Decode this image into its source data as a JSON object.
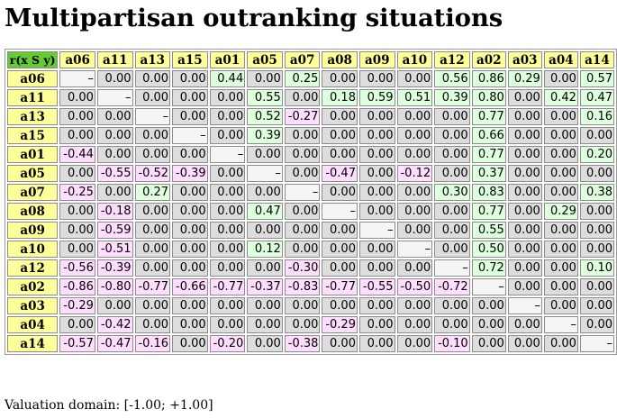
{
  "page": {
    "title": "Multipartisan outranking situations",
    "caption": "Valuation domain: [-1.00; +1.00]"
  },
  "matrix": {
    "corner_label": "r(x S y)",
    "column_labels": [
      "a06",
      "a11",
      "a13",
      "a15",
      "a01",
      "a05",
      "a07",
      "a08",
      "a09",
      "a10",
      "a12",
      "a02",
      "a03",
      "a04",
      "a14"
    ],
    "rows": [
      {
        "label": "a06",
        "cells": [
          "–",
          "0.00",
          "0.00",
          "0.00",
          "0.44",
          "0.00",
          "0.25",
          "0.00",
          "0.00",
          "0.00",
          "0.56",
          "0.86",
          "0.29",
          "0.00",
          "0.57"
        ]
      },
      {
        "label": "a11",
        "cells": [
          "0.00",
          "–",
          "0.00",
          "0.00",
          "0.00",
          "0.55",
          "0.00",
          "0.18",
          "0.59",
          "0.51",
          "0.39",
          "0.80",
          "0.00",
          "0.42",
          "0.47"
        ]
      },
      {
        "label": "a13",
        "cells": [
          "0.00",
          "0.00",
          "–",
          "0.00",
          "0.00",
          "0.52",
          "-0.27",
          "0.00",
          "0.00",
          "0.00",
          "0.00",
          "0.77",
          "0.00",
          "0.00",
          "0.16"
        ]
      },
      {
        "label": "a15",
        "cells": [
          "0.00",
          "0.00",
          "0.00",
          "–",
          "0.00",
          "0.39",
          "0.00",
          "0.00",
          "0.00",
          "0.00",
          "0.00",
          "0.66",
          "0.00",
          "0.00",
          "0.00"
        ]
      },
      {
        "label": "a01",
        "cells": [
          "-0.44",
          "0.00",
          "0.00",
          "0.00",
          "–",
          "0.00",
          "0.00",
          "0.00",
          "0.00",
          "0.00",
          "0.00",
          "0.77",
          "0.00",
          "0.00",
          "0.20"
        ]
      },
      {
        "label": "a05",
        "cells": [
          "0.00",
          "-0.55",
          "-0.52",
          "-0.39",
          "0.00",
          "–",
          "0.00",
          "-0.47",
          "0.00",
          "-0.12",
          "0.00",
          "0.37",
          "0.00",
          "0.00",
          "0.00"
        ]
      },
      {
        "label": "a07",
        "cells": [
          "-0.25",
          "0.00",
          "0.27",
          "0.00",
          "0.00",
          "0.00",
          "–",
          "0.00",
          "0.00",
          "0.00",
          "0.30",
          "0.83",
          "0.00",
          "0.00",
          "0.38"
        ]
      },
      {
        "label": "a08",
        "cells": [
          "0.00",
          "-0.18",
          "0.00",
          "0.00",
          "0.00",
          "0.47",
          "0.00",
          "–",
          "0.00",
          "0.00",
          "0.00",
          "0.77",
          "0.00",
          "0.29",
          "0.00"
        ]
      },
      {
        "label": "a09",
        "cells": [
          "0.00",
          "-0.59",
          "0.00",
          "0.00",
          "0.00",
          "0.00",
          "0.00",
          "0.00",
          "–",
          "0.00",
          "0.00",
          "0.55",
          "0.00",
          "0.00",
          "0.00"
        ]
      },
      {
        "label": "a10",
        "cells": [
          "0.00",
          "-0.51",
          "0.00",
          "0.00",
          "0.00",
          "0.12",
          "0.00",
          "0.00",
          "0.00",
          "–",
          "0.00",
          "0.50",
          "0.00",
          "0.00",
          "0.00"
        ]
      },
      {
        "label": "a12",
        "cells": [
          "-0.56",
          "-0.39",
          "0.00",
          "0.00",
          "0.00",
          "0.00",
          "-0.30",
          "0.00",
          "0.00",
          "0.00",
          "–",
          "0.72",
          "0.00",
          "0.00",
          "0.10"
        ]
      },
      {
        "label": "a02",
        "cells": [
          "-0.86",
          "-0.80",
          "-0.77",
          "-0.66",
          "-0.77",
          "-0.37",
          "-0.83",
          "-0.77",
          "-0.55",
          "-0.50",
          "-0.72",
          "–",
          "0.00",
          "0.00",
          "0.00"
        ]
      },
      {
        "label": "a03",
        "cells": [
          "-0.29",
          "0.00",
          "0.00",
          "0.00",
          "0.00",
          "0.00",
          "0.00",
          "0.00",
          "0.00",
          "0.00",
          "0.00",
          "0.00",
          "–",
          "0.00",
          "0.00"
        ]
      },
      {
        "label": "a04",
        "cells": [
          "0.00",
          "-0.42",
          "0.00",
          "0.00",
          "0.00",
          "0.00",
          "0.00",
          "-0.29",
          "0.00",
          "0.00",
          "0.00",
          "0.00",
          "0.00",
          "–",
          "0.00"
        ]
      },
      {
        "label": "a14",
        "cells": [
          "-0.57",
          "-0.47",
          "-0.16",
          "0.00",
          "-0.20",
          "0.00",
          "-0.38",
          "0.00",
          "0.00",
          "0.00",
          "-0.10",
          "0.00",
          "0.00",
          "0.00",
          "–"
        ]
      }
    ]
  },
  "colors": {
    "header_bg": "#ffff99",
    "corner_bg": "#66cc33",
    "negative_bg": "#ffddff",
    "zero_bg": "#dddddd",
    "positive_bg": "#ddffdd"
  }
}
